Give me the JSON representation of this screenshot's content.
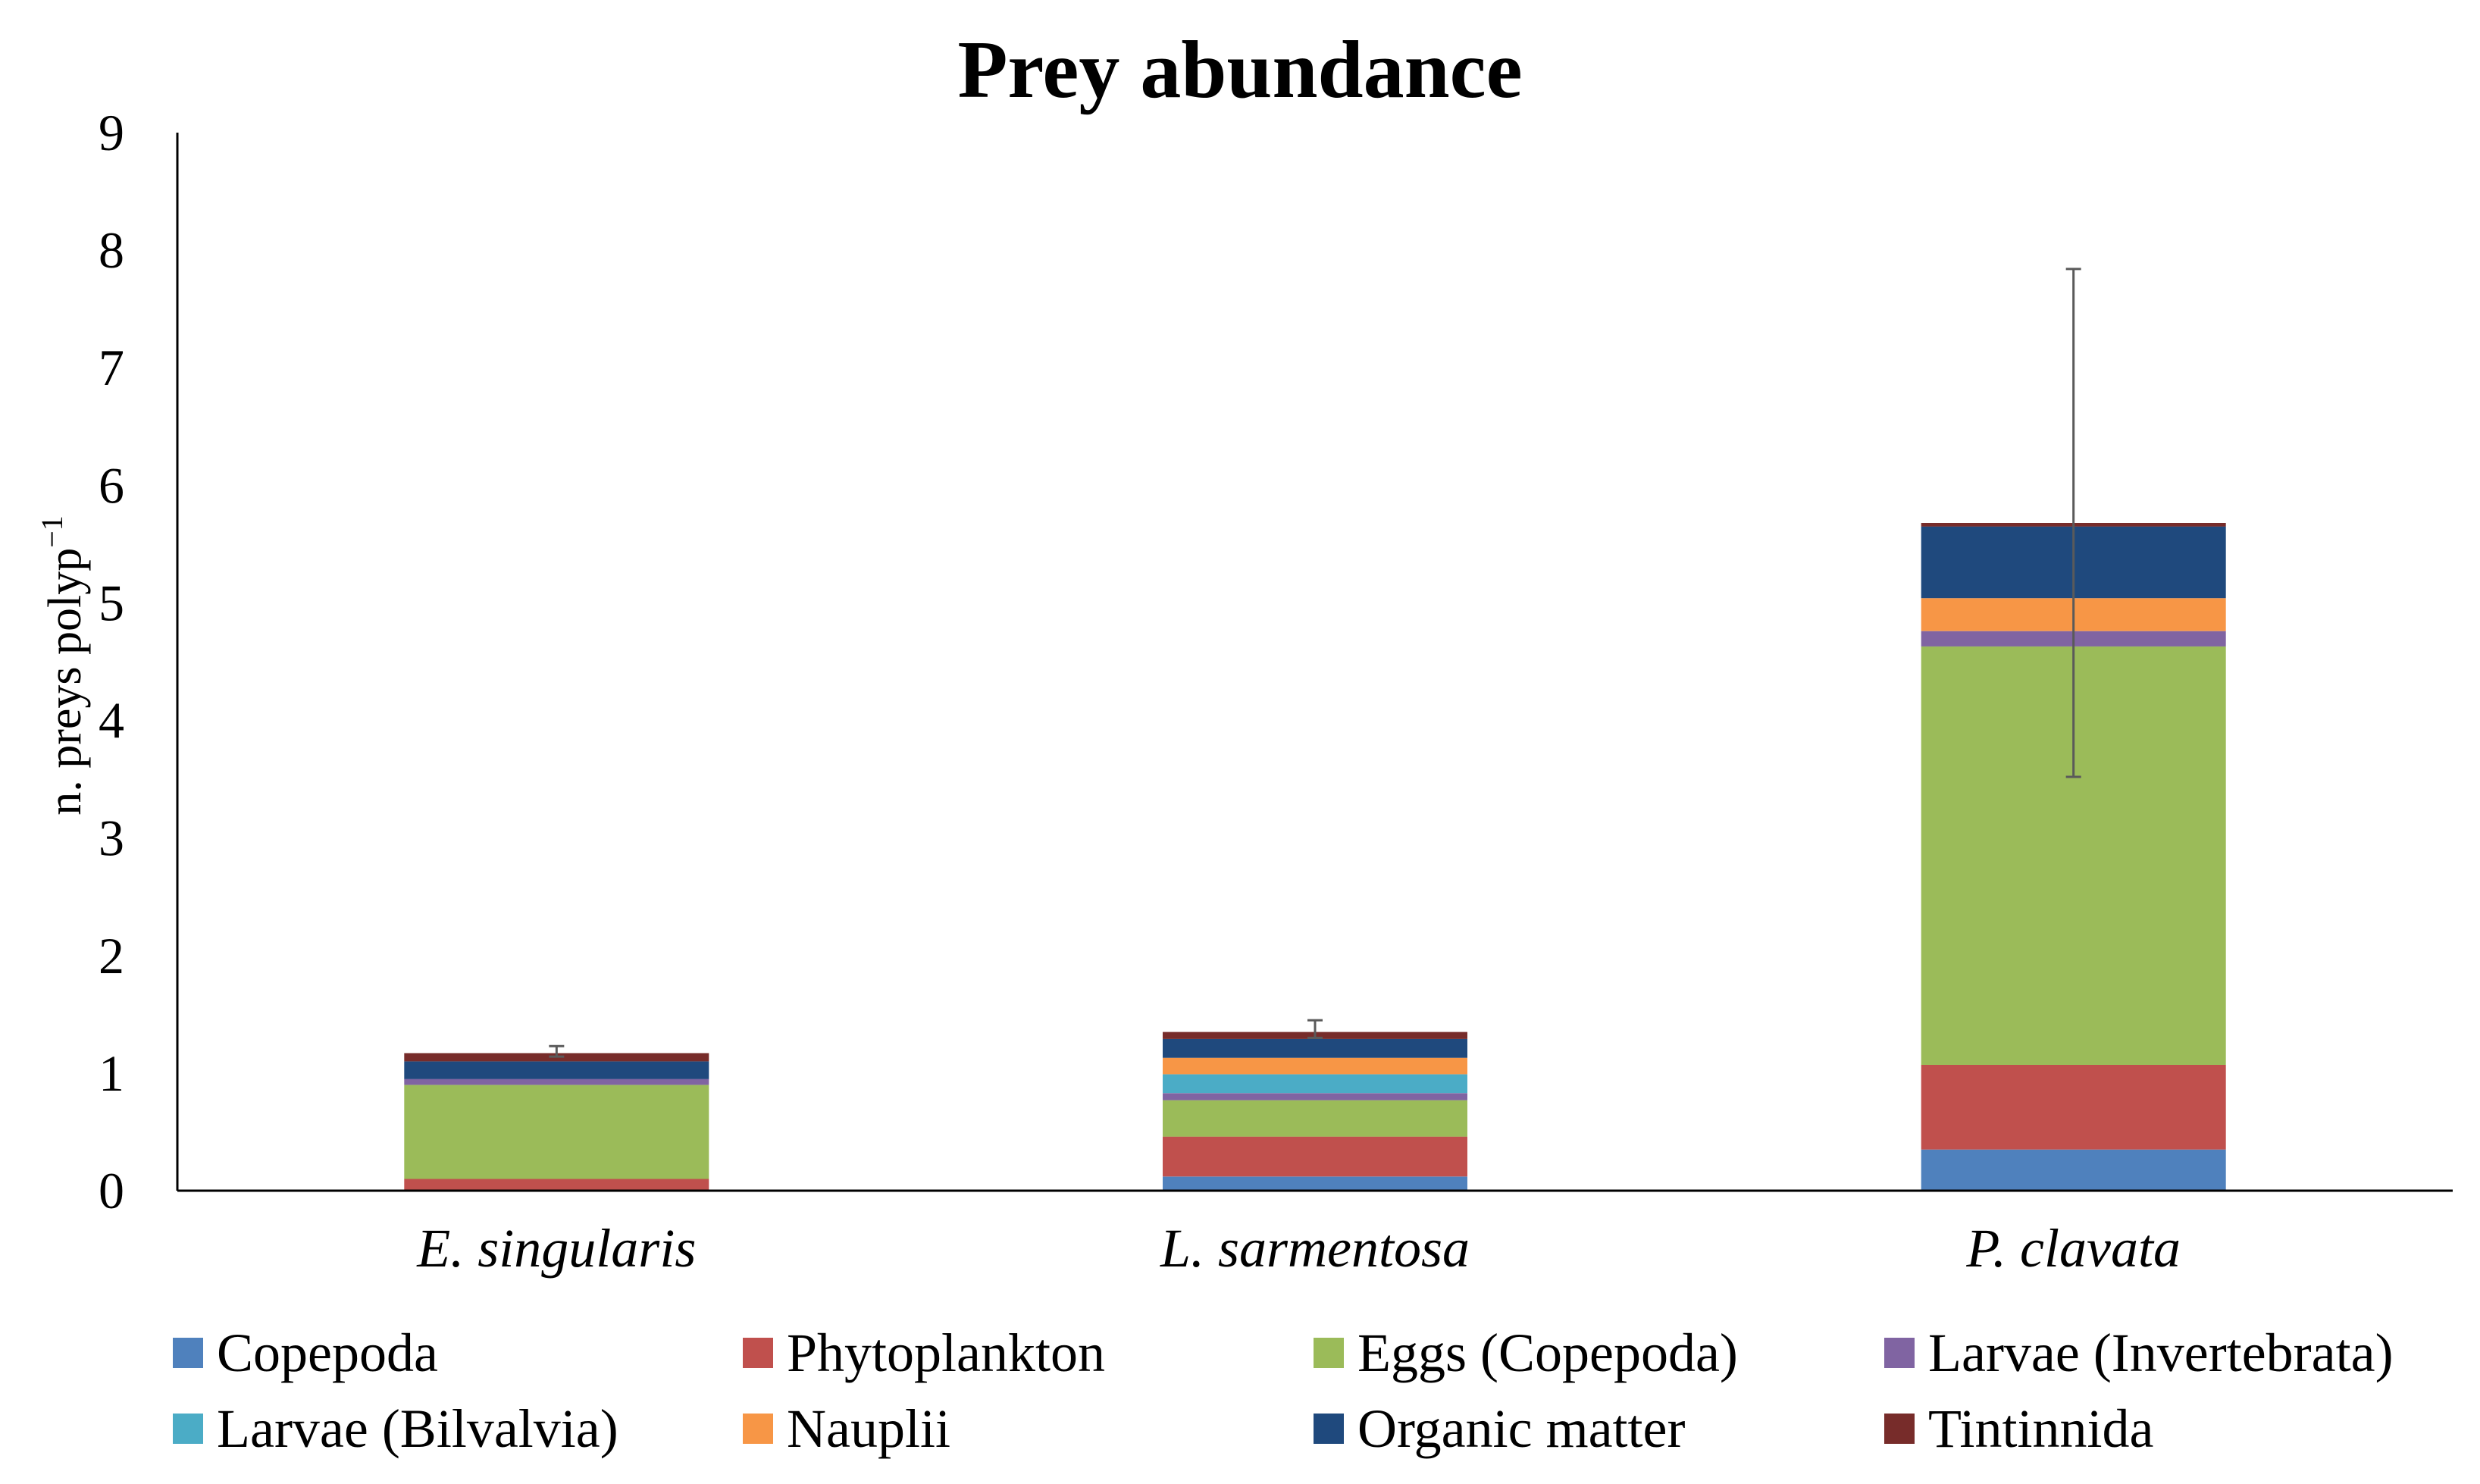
{
  "chart_data": {
    "type": "stacked-bar",
    "title": "Prey abundance",
    "xlabel": "",
    "ylabel": "n. preys polyp",
    "ylabel_superscript": "−1",
    "ylim": [
      0,
      9
    ],
    "yticks": [
      0,
      1,
      2,
      3,
      4,
      5,
      6,
      7,
      8,
      9
    ],
    "grid": false,
    "legend_position": "bottom",
    "categories": [
      "E. singularis",
      "L. sarmentosa",
      "P. clavata"
    ],
    "series": [
      {
        "name": "Copepoda",
        "color": "#4F81BD",
        "values": [
          0.0,
          0.12,
          0.35
        ]
      },
      {
        "name": "Phytoplankton",
        "color": "#C0504D",
        "values": [
          0.1,
          0.34,
          0.72
        ]
      },
      {
        "name": "Eggs (Copepoda)",
        "color": "#9BBB59",
        "values": [
          0.8,
          0.31,
          3.56
        ]
      },
      {
        "name": "Larvae (Invertebrata)",
        "color": "#8064A2",
        "values": [
          0.05,
          0.06,
          0.13
        ]
      },
      {
        "name": "Larvae (Bilvalvia)",
        "color": "#4BACC6",
        "values": [
          0.0,
          0.16,
          0.0
        ]
      },
      {
        "name": "Nauplii",
        "color": "#F79646",
        "values": [
          0.0,
          0.14,
          0.28
        ]
      },
      {
        "name": "Organic matter",
        "color": "#1F497D",
        "values": [
          0.15,
          0.16,
          0.61
        ]
      },
      {
        "name": "Tintinnida",
        "color": "#772C2A",
        "values": [
          0.07,
          0.06,
          0.03
        ]
      }
    ],
    "error_bars": [
      {
        "category": "E. singularis",
        "low": 1.14,
        "high": 1.23
      },
      {
        "category": "L. sarmentosa",
        "low": 1.3,
        "high": 1.45
      },
      {
        "category": "P. clavata",
        "low": 3.52,
        "high": 7.84
      }
    ]
  }
}
